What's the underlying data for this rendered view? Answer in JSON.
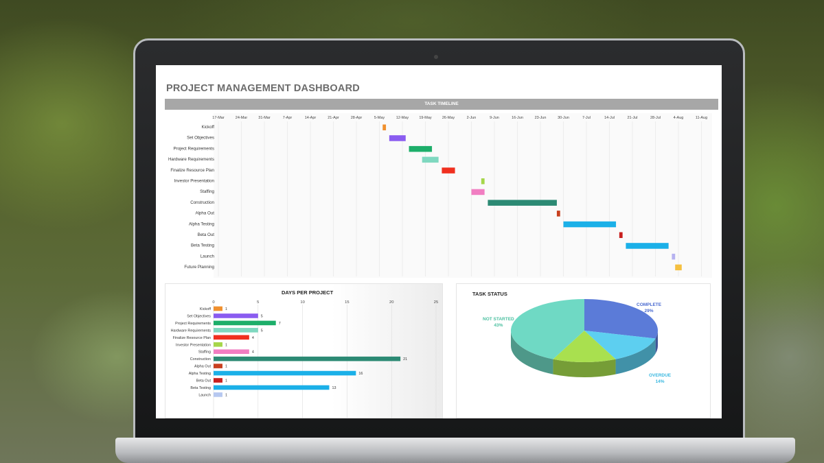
{
  "dashboard": {
    "title": "PROJECT MANAGEMENT DASHBOARD",
    "timeline_header": "TASK TIMELINE"
  },
  "chart_data": [
    {
      "type": "bar",
      "subtype": "gantt",
      "title": "TASK TIMELINE",
      "x_ticks": [
        "17-Mar",
        "24-Mar",
        "31-Mar",
        "7-Apr",
        "14-Apr",
        "21-Apr",
        "28-Apr",
        "5-May",
        "12-May",
        "19-May",
        "26-May",
        "2-Jun",
        "9-Jun",
        "16-Jun",
        "23-Jun",
        "30-Jun",
        "7-Jul",
        "14-Jul",
        "21-Jul",
        "28-Jul",
        "4-Aug",
        "11-Aug"
      ],
      "tasks": [
        {
          "name": "Kickoff",
          "start": "2019-05-06",
          "days": 1,
          "color": "#f0902e"
        },
        {
          "name": "Set Objectives",
          "start": "2019-05-08",
          "days": 5,
          "color": "#8a5cf0"
        },
        {
          "name": "Project Requirements",
          "start": "2019-05-14",
          "days": 7,
          "color": "#1dae6a"
        },
        {
          "name": "Hardware Requirements",
          "start": "2019-05-18",
          "days": 5,
          "color": "#7fd8c0"
        },
        {
          "name": "Finalize Resource Plan",
          "start": "2019-05-24",
          "days": 4,
          "color": "#f0301f"
        },
        {
          "name": "Investor Presentation",
          "start": "2019-06-05",
          "days": 1,
          "color": "#a6d64a"
        },
        {
          "name": "Staffing",
          "start": "2019-06-02",
          "days": 4,
          "color": "#f17ec2"
        },
        {
          "name": "Construction",
          "start": "2019-06-07",
          "days": 21,
          "color": "#2c8a74"
        },
        {
          "name": "Alpha Out",
          "start": "2019-06-28",
          "days": 1,
          "color": "#c8401f"
        },
        {
          "name": "Alpha Testing",
          "start": "2019-06-30",
          "days": 16,
          "color": "#1bb0e8"
        },
        {
          "name": "Beta Out",
          "start": "2019-07-17",
          "days": 1,
          "color": "#c8201f"
        },
        {
          "name": "Beta Testing",
          "start": "2019-07-19",
          "days": 13,
          "color": "#1bb0e8"
        },
        {
          "name": "Launch",
          "start": "2019-08-02",
          "days": 1,
          "color": "#b6b2f0"
        },
        {
          "name": "Future Planning",
          "start": "2019-08-03",
          "days": 2,
          "color": "#f5c040"
        }
      ]
    },
    {
      "type": "bar",
      "orientation": "horizontal",
      "title": "DAYS PER PROJECT",
      "xlim": [
        0,
        25
      ],
      "x_ticks": [
        0,
        5,
        10,
        15,
        20,
        25
      ],
      "categories": [
        "Kickoff",
        "Set Objectives",
        "Project Requirements",
        "Hardware Requirements",
        "Finalize Resource Plan",
        "Investor Presentation",
        "Staffing",
        "Construction",
        "Alpha Out",
        "Alpha Testing",
        "Beta Out",
        "Beta Testing",
        "Launch"
      ],
      "values": [
        1,
        5,
        7,
        5,
        4,
        1,
        4,
        21,
        1,
        16,
        1,
        13,
        1
      ],
      "colors": [
        "#f0902e",
        "#8a5cf0",
        "#1dae6a",
        "#7fd8c0",
        "#f0301f",
        "#a6d64a",
        "#f17ec2",
        "#2c8a74",
        "#c8401f",
        "#1bb0e8",
        "#c8201f",
        "#1bb0e8",
        "#b6c8f0"
      ],
      "grid": true
    },
    {
      "type": "pie",
      "title": "TASK STATUS",
      "slices": [
        {
          "label": "COMPLETE",
          "pct": "29%",
          "value": 29,
          "color": "#5b7bd8"
        },
        {
          "label": "OVERDUE",
          "pct": "14%",
          "value": 14,
          "color": "#5dcff0"
        },
        {
          "label": "",
          "pct": "",
          "value": 14,
          "color": "#a9e04f"
        },
        {
          "label": "NOT STARTED",
          "pct": "43%",
          "value": 43,
          "color": "#6fd9c4"
        }
      ],
      "label_colors": {
        "complete": "#4a6ad0",
        "overdue": "#3ab8e0",
        "not_started": "#4cc0a0"
      }
    }
  ]
}
